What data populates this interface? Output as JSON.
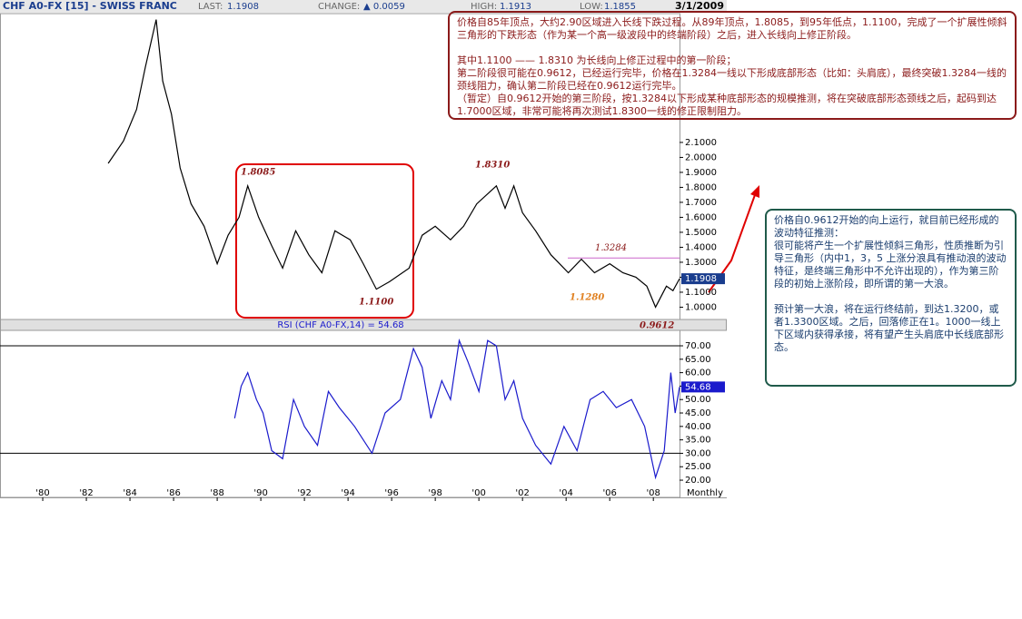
{
  "header": {
    "title": "CHF A0-FX [15] - SWISS FRANC",
    "last_label": "LAST:",
    "last": "1.1908",
    "change_label": "CHANGE:",
    "change": "▲ 0.0059",
    "high_label": "HIGH:",
    "high": "1.1913",
    "low_label": "LOW:",
    "low": "1.1855",
    "date": "3/1/2009"
  },
  "chart_data": [
    {
      "type": "line",
      "color": "#000000",
      "x": [
        1983.0,
        1983.7,
        1984.3,
        1984.7,
        1985.2,
        1985.5,
        1985.9,
        1986.3,
        1986.8,
        1987.4,
        1988.0,
        1988.5,
        1989.0,
        1989.4,
        1989.9,
        1990.5,
        1991.0,
        1991.6,
        1992.2,
        1992.8,
        1993.4,
        1994.1,
        1994.7,
        1995.3,
        1995.9,
        1996.8,
        1997.4,
        1998.0,
        1998.7,
        1999.3,
        1999.9,
        2000.8,
        2001.2,
        2001.6,
        2002.0,
        2002.6,
        2003.3,
        2004.1,
        2004.7,
        2005.3,
        2006.0,
        2006.6,
        2007.2,
        2007.7,
        2008.1,
        2008.6,
        2008.9,
        2009.2
      ],
      "values": [
        1.96,
        2.11,
        2.32,
        2.6,
        2.92,
        2.51,
        2.29,
        1.93,
        1.69,
        1.54,
        1.29,
        1.48,
        1.6,
        1.81,
        1.6,
        1.41,
        1.26,
        1.51,
        1.35,
        1.23,
        1.51,
        1.45,
        1.29,
        1.12,
        1.17,
        1.26,
        1.48,
        1.54,
        1.45,
        1.54,
        1.69,
        1.81,
        1.66,
        1.81,
        1.63,
        1.51,
        1.35,
        1.23,
        1.32,
        1.23,
        1.29,
        1.23,
        1.2,
        1.14,
        1.0,
        1.14,
        1.11,
        1.19
      ],
      "xlim": [
        1978.04,
        2009.2
      ],
      "ylim": [
        0.93,
        2.96
      ],
      "yticks": [
        {
          "value": 1.0,
          "label": "1.0000"
        },
        {
          "value": 1.1,
          "label": "1.1000"
        },
        {
          "value": 1.2,
          "label": "1.2000"
        },
        {
          "value": 1.3,
          "label": "1.3000"
        },
        {
          "value": 1.4,
          "label": "1.4000"
        },
        {
          "value": 1.5,
          "label": "1.5000"
        },
        {
          "value": 1.6,
          "label": "1.6000"
        },
        {
          "value": 1.7,
          "label": "1.7000"
        },
        {
          "value": 1.8,
          "label": "1.8000"
        },
        {
          "value": 1.9,
          "label": "1.9000"
        },
        {
          "value": 2.0,
          "label": "2.0000"
        },
        {
          "value": 2.1,
          "label": "2.1000"
        }
      ],
      "reference_line": 1.3284,
      "reference_color": "#cc66cc",
      "annotations": [
        "1.8085",
        "1.1100",
        "1.8310",
        "1.1280",
        "0.9612"
      ]
    },
    {
      "type": "line",
      "color": "#1a1acc",
      "title": "RSI (CHF A0-FX,14) = 54.68",
      "x": [
        1988.8,
        1989.1,
        1989.4,
        1989.8,
        1990.1,
        1990.5,
        1991.0,
        1991.5,
        1992.0,
        1992.6,
        1993.1,
        1993.6,
        1994.3,
        1995.1,
        1995.7,
        1996.4,
        1997.0,
        1997.4,
        1997.8,
        1998.3,
        1998.7,
        1999.1,
        1999.5,
        2000.0,
        2000.4,
        2000.8,
        2001.2,
        2001.6,
        2002.0,
        2002.6,
        2003.3,
        2003.9,
        2004.5,
        2005.1,
        2005.7,
        2006.3,
        2007.0,
        2007.6,
        2008.1,
        2008.5,
        2008.8,
        2009.0,
        2009.2
      ],
      "values": [
        43,
        55,
        60,
        50,
        45,
        31,
        28,
        50,
        40,
        33,
        53,
        47,
        40,
        30,
        45,
        50,
        69,
        62,
        43,
        57,
        50,
        72,
        64,
        53,
        72,
        70,
        50,
        57,
        43,
        33,
        26,
        40,
        31,
        50,
        53,
        47,
        50,
        40,
        21,
        31,
        60,
        45,
        54.68
      ],
      "value_labels": {
        "last": "54.68"
      },
      "xlim": [
        1978.04,
        2009.2
      ],
      "ylim": [
        13.6,
        75.4
      ],
      "yticks": [
        {
          "value": 20,
          "label": "20.00"
        },
        {
          "value": 25,
          "label": "25.00"
        },
        {
          "value": 30,
          "label": "30.00"
        },
        {
          "value": 35,
          "label": "35.00"
        },
        {
          "value": 40,
          "label": "40.00"
        },
        {
          "value": 45,
          "label": "45.00"
        },
        {
          "value": 50,
          "label": "50.00"
        },
        {
          "value": 55,
          "label": "55.00"
        },
        {
          "value": 60,
          "label": "60.00"
        },
        {
          "value": 65,
          "label": "65.00"
        },
        {
          "value": 70,
          "label": "70.00"
        }
      ],
      "levels": [
        30,
        70
      ],
      "xticks": [
        {
          "value": 1980,
          "label": "'80"
        },
        {
          "value": 1982,
          "label": "'82"
        },
        {
          "value": 1984,
          "label": "'84"
        },
        {
          "value": 1986,
          "label": "'86"
        },
        {
          "value": 1988,
          "label": "'88"
        },
        {
          "value": 1990,
          "label": "'90"
        },
        {
          "value": 1992,
          "label": "'92"
        },
        {
          "value": 1994,
          "label": "'94"
        },
        {
          "value": 1996,
          "label": "'96"
        },
        {
          "value": 1998,
          "label": "'98"
        },
        {
          "value": 2000,
          "label": "'00"
        },
        {
          "value": 2002,
          "label": "'02"
        },
        {
          "value": 2004,
          "label": "'04"
        },
        {
          "value": 2006,
          "label": "'06"
        },
        {
          "value": 2008,
          "label": "'08"
        }
      ],
      "interval": "Monthly"
    }
  ],
  "notes": [
    [
      "价格自85年顶点，大约2.90区域进入长线下跌过程。从89年顶点，1.8085，到95年低点，1.1100，完成了一个扩展性倾斜三角形的下跌形态（作为某一个高一级波段中的终端阶段）之后，进入长线向上修正阶段。",
      "其中1.1100 —— 1.8310 为长线向上修正过程中的第一阶段；",
      "第二阶段很可能在0.9612，已经运行完毕，价格在1.3284一线以下形成底部形态（比如：头肩底），最终突破1.3284一线的颈线阻力，确认第二阶段已经在0.9612运行完毕。",
      "（暂定）自0.9612开始的第三阶段，按1.3284以下形成某种底部形态的规模推测，将在突破底部形态颈线之后，起码到达1.7000区域，非常可能将再次测试1.8300一线的修正限制阻力。"
    ],
    [
      "价格自0.9612开始的向上运行，就目前已经形成的波动特征推测：",
      "很可能将产生一个扩展性倾斜三角形，性质推断为引导三角形（内中1，3，5 上涨分浪具有推动浪的波动特征，是终端三角形中不允许出现的），作为第三阶段的初始上涨阶段，即所谓的第一大浪。",
      "预计第一大浪，将在运行终结前，到达1.3200，或者1.3300区域。之后，回落修正在1。1000一线上下区域内获得承接，将有望产生头肩底中长线底部形态。"
    ]
  ]
}
